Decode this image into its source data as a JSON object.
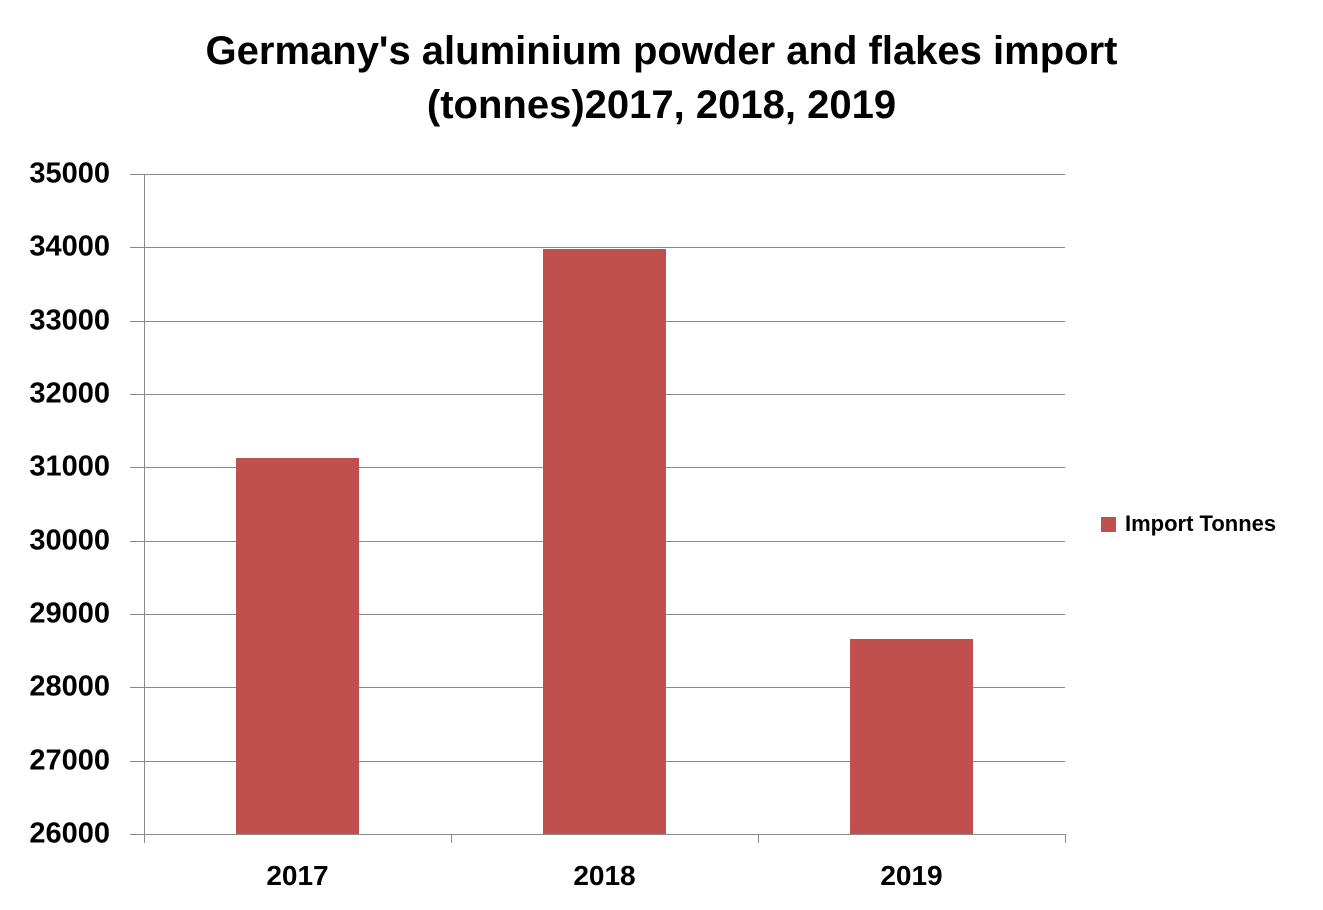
{
  "chart_data": {
    "type": "bar",
    "title": "Germany's aluminium powder and flakes import (tonnes)2017, 2018, 2019",
    "title_lines": [
      "Germany's aluminium powder and flakes import",
      "(tonnes)2017, 2018, 2019"
    ],
    "categories": [
      "2017",
      "2018",
      "2019"
    ],
    "series": [
      {
        "name": "Import Tonnes",
        "color": "#c0504d",
        "values": [
          31130,
          33980,
          28660
        ]
      }
    ],
    "xlabel": "",
    "ylabel": "",
    "ylim": [
      26000,
      35000
    ],
    "yticks": [
      "35000",
      "34000",
      "33000",
      "32000",
      "31000",
      "30000",
      "29000",
      "28000",
      "27000",
      "26000"
    ],
    "grid": true,
    "legend_position": "right"
  }
}
